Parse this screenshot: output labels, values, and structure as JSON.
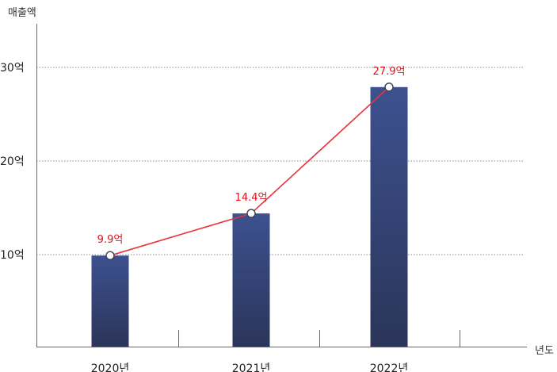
{
  "chart_data": {
    "type": "bar",
    "ylabel": "매출액",
    "xlabel": "년도",
    "categories": [
      "2020년",
      "2021년",
      "2022년"
    ],
    "values": [
      9.9,
      14.4,
      27.9
    ],
    "data_labels": [
      "9.9억",
      "14.4억",
      "27.9억"
    ],
    "yticks": [
      {
        "value": 10,
        "label": "10억"
      },
      {
        "value": 20,
        "label": "20억"
      },
      {
        "value": 30,
        "label": "30억"
      }
    ],
    "ylim": [
      0,
      30
    ],
    "grid": true,
    "line_overlay": true,
    "colors": {
      "bar_top": "#3d5190",
      "bar_bottom": "#2b3559",
      "line": "#e8323c",
      "label": "#e0101a",
      "grid": "#888888",
      "axis": "#666666"
    }
  }
}
